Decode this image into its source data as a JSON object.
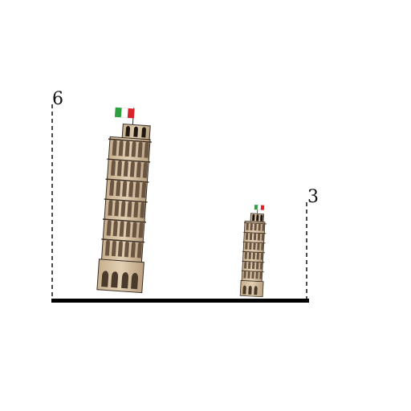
{
  "labels": {
    "large_height": "6",
    "small_height": "3"
  },
  "icons": {
    "large_tower": "leaning-tower-of-pisa-icon",
    "small_tower": "leaning-tower-of-pisa-icon",
    "flag": "italian-flag-icon"
  },
  "colors": {
    "ground": "#000000",
    "stone": "#d8c3a5",
    "stone_shadow": "#a8927a",
    "outline": "#3b2f25",
    "flag_green": "#2e9e3e",
    "flag_white": "#ffffff",
    "flag_red": "#d8232a"
  }
}
